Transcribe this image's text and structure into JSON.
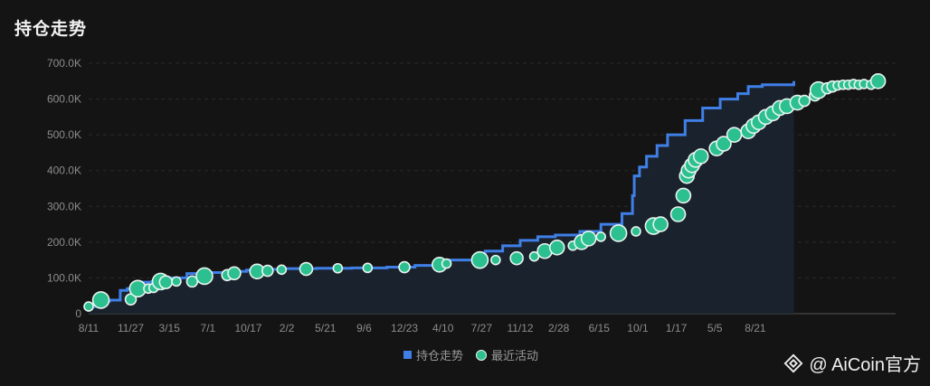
{
  "chart_data": {
    "type": "line",
    "title": "持仓走势",
    "ylim": [
      0,
      700000
    ],
    "y_ticks": [
      "0",
      "100.0K",
      "200.0K",
      "300.0K",
      "400.0K",
      "500.0K",
      "600.0K",
      "700.0K"
    ],
    "x_ticks": [
      "8/11",
      "11/27",
      "3/15",
      "7/1",
      "10/17",
      "2/2",
      "5/21",
      "9/6",
      "12/23",
      "4/10",
      "7/27",
      "11/12",
      "2/28",
      "6/15",
      "10/1",
      "1/17",
      "5/5",
      "8/21"
    ],
    "legend": [
      "持仓走势",
      "最近活动"
    ],
    "legend_position": "bottom-center",
    "grid": true,
    "colors": {
      "line": "#3f7fe6",
      "dot": "#2cbf8f",
      "dot_stroke": "#e8f5ef",
      "area": "#1b2433"
    },
    "series": [
      {
        "name": "持仓走势",
        "points": [
          [
            0,
            20000
          ],
          [
            0.2,
            35000
          ],
          [
            0.6,
            38000
          ],
          [
            0.9,
            65000
          ],
          [
            1.1,
            70000
          ],
          [
            1.4,
            88000
          ],
          [
            1.8,
            90000
          ],
          [
            2.3,
            100000
          ],
          [
            2.8,
            112000
          ],
          [
            3.3,
            115000
          ],
          [
            4,
            118000
          ],
          [
            4.5,
            122000
          ],
          [
            5,
            124000
          ],
          [
            5.5,
            126000
          ],
          [
            6.5,
            127000
          ],
          [
            7.5,
            128000
          ],
          [
            8.5,
            130000
          ],
          [
            9.3,
            135000
          ],
          [
            10,
            150000
          ],
          [
            11,
            160000
          ],
          [
            11.3,
            175000
          ],
          [
            11.8,
            190000
          ],
          [
            12.3,
            205000
          ],
          [
            12.8,
            215000
          ],
          [
            13.3,
            220000
          ],
          [
            14,
            230000
          ],
          [
            14.6,
            250000
          ],
          [
            15.2,
            280000
          ],
          [
            15.5,
            330000
          ],
          [
            15.55,
            385000
          ],
          [
            15.7,
            410000
          ],
          [
            15.9,
            440000
          ],
          [
            16.2,
            470000
          ],
          [
            16.5,
            500000
          ],
          [
            17,
            540000
          ],
          [
            17.5,
            575000
          ],
          [
            18,
            600000
          ],
          [
            18.5,
            615000
          ],
          [
            18.8,
            635000
          ],
          [
            19.2,
            640000
          ],
          [
            19.7,
            640000
          ],
          [
            20.1,
            650000
          ]
        ]
      },
      {
        "name": "最近活动",
        "points": [
          [
            0,
            20000,
            5
          ],
          [
            0.35,
            38000,
            9
          ],
          [
            1.2,
            40000,
            6
          ],
          [
            1.4,
            70000,
            9
          ],
          [
            1.7,
            70000,
            5
          ],
          [
            1.85,
            72000,
            5
          ],
          [
            2.05,
            90000,
            9
          ],
          [
            2.2,
            88000,
            7
          ],
          [
            2.5,
            90000,
            5
          ],
          [
            2.95,
            90000,
            6
          ],
          [
            3.3,
            105000,
            9
          ],
          [
            3.95,
            108000,
            6
          ],
          [
            4.15,
            113000,
            7
          ],
          [
            4.8,
            118000,
            8
          ],
          [
            5.1,
            120000,
            6
          ],
          [
            5.5,
            123000,
            5
          ],
          [
            6.2,
            125000,
            7
          ],
          [
            7.1,
            127000,
            5
          ],
          [
            7.95,
            128000,
            5
          ],
          [
            9.0,
            130000,
            6
          ],
          [
            10.0,
            137000,
            8
          ],
          [
            10.2,
            140000,
            5
          ],
          [
            11.15,
            150000,
            9
          ],
          [
            11.6,
            150000,
            5
          ],
          [
            12.2,
            155000,
            7
          ],
          [
            12.7,
            160000,
            5
          ],
          [
            13.0,
            175000,
            8
          ],
          [
            13.35,
            185000,
            8
          ],
          [
            13.8,
            190000,
            5
          ],
          [
            14.05,
            200000,
            8
          ],
          [
            14.25,
            210000,
            8
          ],
          [
            14.6,
            215000,
            5
          ],
          [
            15.1,
            225000,
            9
          ],
          [
            15.6,
            230000,
            5
          ],
          [
            16.1,
            245000,
            9
          ],
          [
            16.3,
            250000,
            8
          ],
          [
            16.8,
            278000,
            8
          ],
          [
            16.95,
            330000,
            8
          ],
          [
            17.05,
            385000,
            8
          ],
          [
            17.1,
            400000,
            8
          ],
          [
            17.2,
            415000,
            8
          ],
          [
            17.3,
            430000,
            8
          ],
          [
            17.45,
            440000,
            8
          ],
          [
            17.9,
            462000,
            8
          ],
          [
            18.1,
            475000,
            8
          ],
          [
            18.4,
            500000,
            8
          ],
          [
            18.8,
            510000,
            8
          ],
          [
            18.95,
            525000,
            8
          ],
          [
            19.1,
            535000,
            8
          ],
          [
            19.3,
            550000,
            8
          ],
          [
            19.5,
            560000,
            8
          ],
          [
            19.7,
            575000,
            8
          ],
          [
            19.9,
            580000,
            8
          ],
          [
            20.2,
            590000,
            8
          ],
          [
            20.4,
            595000,
            6
          ],
          [
            20.7,
            610000,
            6
          ],
          [
            20.8,
            625000,
            9
          ],
          [
            21.05,
            630000,
            6
          ],
          [
            21.2,
            635000,
            6
          ],
          [
            21.35,
            638000,
            5
          ],
          [
            21.5,
            640000,
            5
          ],
          [
            21.65,
            640000,
            5
          ],
          [
            21.8,
            642000,
            5
          ],
          [
            21.95,
            640000,
            5
          ],
          [
            22.1,
            642000,
            5
          ],
          [
            22.3,
            640000,
            5
          ],
          [
            22.5,
            650000,
            8
          ]
        ]
      }
    ]
  },
  "watermark": {
    "text": "@ AiCoin官方"
  }
}
